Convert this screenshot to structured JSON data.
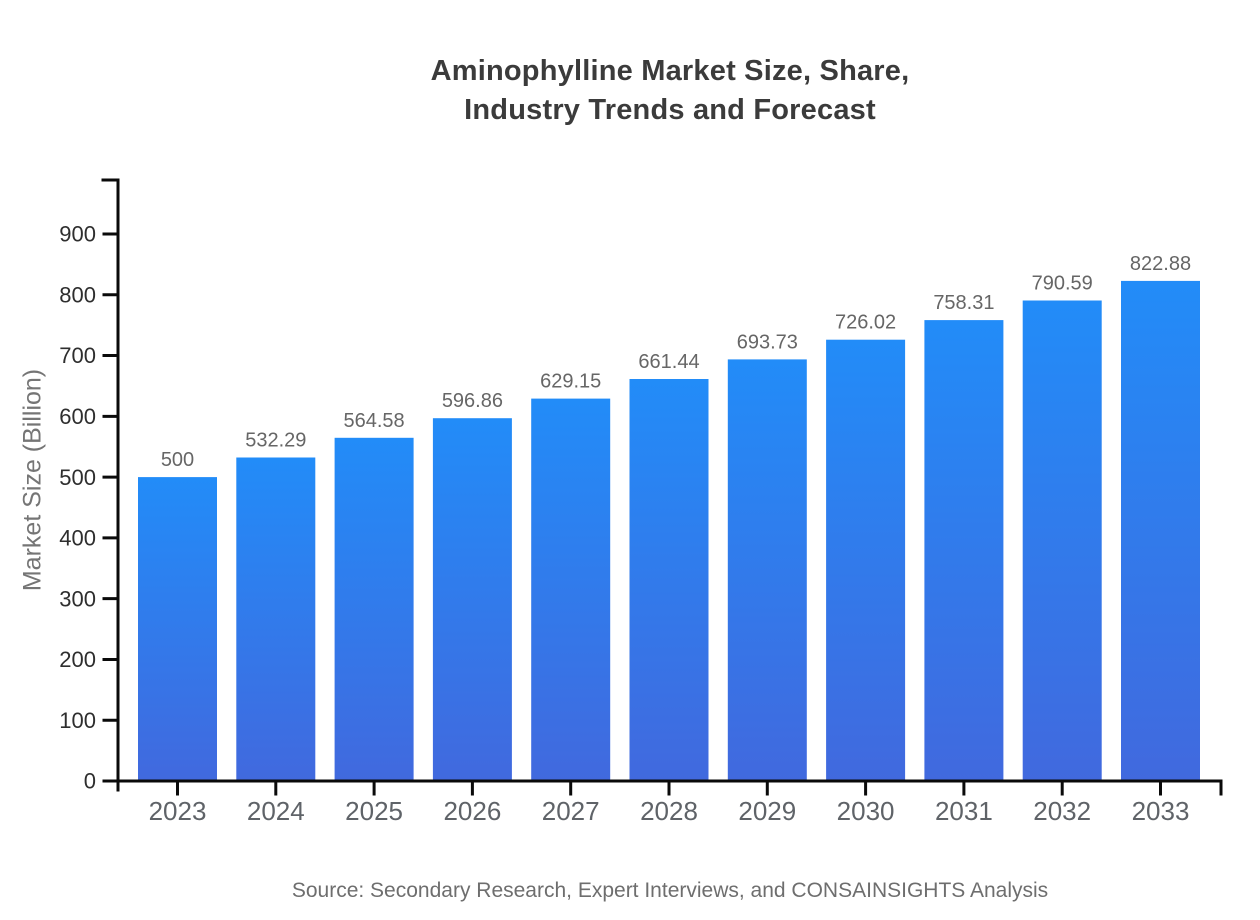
{
  "header": {
    "title_line1": "Aminophylline Market Size, Share,",
    "title_line2": "Industry Trends and Forecast"
  },
  "footer": {
    "source": "Source: Secondary Research, Expert Interviews, and CONSAINSIGHTS Analysis"
  },
  "chart_data": {
    "type": "bar",
    "title": "Aminophylline Market Size, Share, Industry Trends and Forecast",
    "xlabel": "",
    "ylabel": "Market Size (Billion)",
    "categories": [
      "2023",
      "2024",
      "2025",
      "2026",
      "2027",
      "2028",
      "2029",
      "2030",
      "2031",
      "2032",
      "2033"
    ],
    "values": [
      500,
      532.29,
      564.58,
      596.86,
      629.15,
      661.44,
      693.73,
      726.02,
      758.31,
      790.59,
      822.88
    ],
    "value_labels": [
      "500",
      "532.29",
      "564.58",
      "596.86",
      "629.15",
      "661.44",
      "693.73",
      "726.02",
      "758.31",
      "790.59",
      "822.88"
    ],
    "ylim": [
      0,
      990
    ],
    "yticks": [
      0,
      100,
      200,
      300,
      400,
      500,
      600,
      700,
      800,
      900
    ],
    "grid": false,
    "legend_position": "none",
    "colors": {
      "bar_gradient_top": "#228cf8",
      "bar_gradient_bottom": "#4169de",
      "axis": "#0a0a0a",
      "y_tick_label": "#2e2e2e",
      "value_label": "#666666",
      "category_label": "#5f6368"
    },
    "source": "Source: Secondary Research, Expert Interviews, and CONSAINSIGHTS Analysis"
  }
}
